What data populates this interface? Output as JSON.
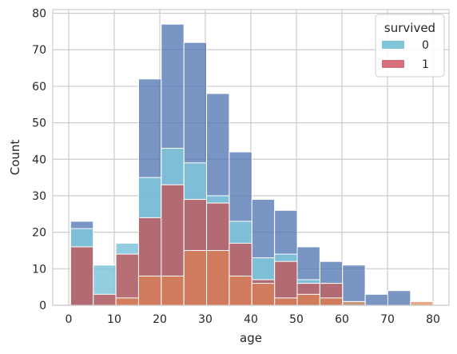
{
  "chart_data": {
    "type": "bar",
    "xlabel": "age",
    "ylabel": "Count",
    "xlim": [
      -3.5,
      83.5
    ],
    "ylim": [
      0,
      81
    ],
    "xticks": [
      0,
      10,
      20,
      30,
      40,
      50,
      60,
      70,
      80
    ],
    "yticks": [
      0,
      10,
      20,
      30,
      40,
      50,
      60,
      70,
      80
    ],
    "grid": true,
    "legend": {
      "title": "survived",
      "placement": "top-right",
      "entries": [
        {
          "label": "0",
          "color": "#7fc6d9"
        },
        {
          "label": "1",
          "color": "#d6707a"
        }
      ]
    },
    "bin_edges": [
      0.42,
      5.4,
      10.37,
      15.35,
      20.32,
      25.3,
      30.27,
      35.25,
      40.22,
      45.2,
      50.17,
      55.15,
      60.12,
      65.1,
      70.07,
      75.05,
      80.0
    ],
    "series": [
      {
        "color": "#4c72b0",
        "values": [
          23,
          0,
          0,
          62,
          77,
          72,
          58,
          42,
          29,
          26,
          16,
          12,
          11,
          3,
          4,
          0
        ]
      },
      {
        "color": "#7fc6d9",
        "values": [
          21,
          11,
          17,
          35,
          43,
          39,
          30,
          23,
          13,
          14,
          7,
          6,
          1,
          0,
          0,
          0
        ]
      },
      {
        "color": "#c44e52",
        "values": [
          16,
          3,
          14,
          24,
          33,
          29,
          28,
          17,
          7,
          12,
          6,
          6,
          0,
          0,
          0,
          0
        ]
      },
      {
        "color": "#4c72b0",
        "values": [
          0,
          0,
          0,
          0,
          0,
          0,
          0,
          0,
          0,
          0,
          0,
          0,
          0,
          0,
          0,
          0
        ]
      },
      {
        "color": "#dd8452",
        "values": [
          0,
          0,
          2,
          8,
          8,
          15,
          15,
          8,
          6,
          2,
          3,
          2,
          1,
          0,
          0,
          1
        ]
      }
    ]
  }
}
